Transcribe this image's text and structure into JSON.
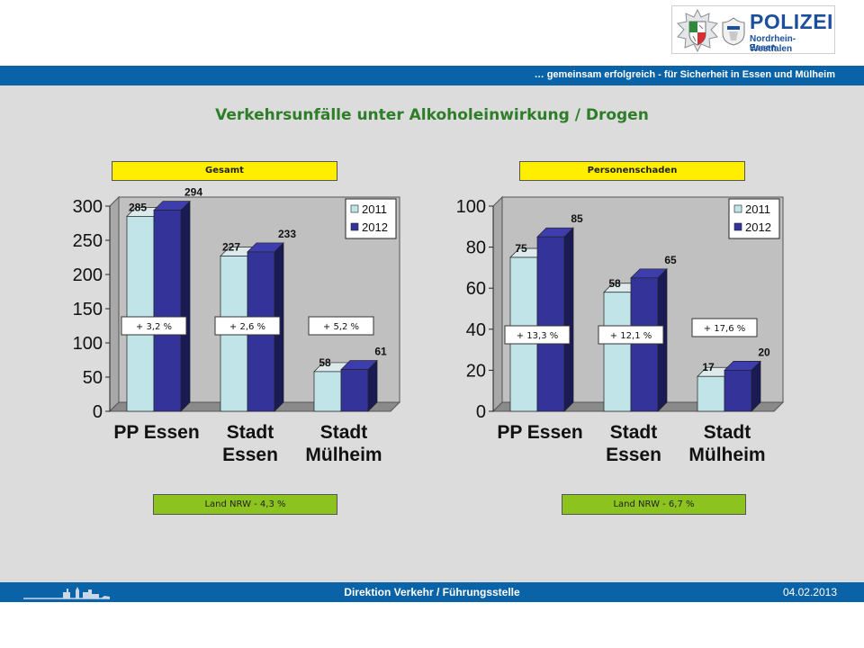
{
  "header": {
    "logo_title": "POLIZEI",
    "logo_sub1": "Nordrhein-Westfalen",
    "logo_sub2": "Essen",
    "tagline": "… gemeinsam erfolgreich - für Sicherheit in Essen und Mülheim"
  },
  "title": "Verkehrsunfälle unter Alkoholeinwirkung / Drogen",
  "colors": {
    "series_2011": "#c0e4e8",
    "series_2012": "#33339a",
    "header_bg": "#ffee00",
    "footer_bg": "#8dc31e",
    "brand_blue": "#0a63a6",
    "title_green": "#2e7d28"
  },
  "chart_data": [
    {
      "type": "bar",
      "title": "Gesamt",
      "categories": [
        [
          "PP Essen"
        ],
        [
          "Stadt",
          "Essen"
        ],
        [
          "Stadt",
          "Mülheim"
        ]
      ],
      "series": [
        {
          "name": "2011",
          "values": [
            285,
            227,
            58
          ]
        },
        {
          "name": "2012",
          "values": [
            294,
            233,
            61
          ]
        }
      ],
      "changes": [
        "+ 3,2 %",
        "+ 2,6 %",
        "+ 5,2 %"
      ],
      "footer": "Land NRW - 4,3 %",
      "ylim": [
        0,
        300
      ],
      "yticks": [
        0,
        50,
        100,
        150,
        200,
        250,
        300
      ],
      "legend": "top-right"
    },
    {
      "type": "bar",
      "title": "Personenschaden",
      "categories": [
        [
          "PP Essen"
        ],
        [
          "Stadt",
          "Essen"
        ],
        [
          "Stadt",
          "Mülheim"
        ]
      ],
      "series": [
        {
          "name": "2011",
          "values": [
            75,
            58,
            17
          ]
        },
        {
          "name": "2012",
          "values": [
            85,
            65,
            20
          ]
        }
      ],
      "changes": [
        "+ 13,3 %",
        "+ 12,1 %",
        "+ 17,6 %"
      ],
      "footer": "Land NRW - 6,7 %",
      "ylim": [
        0,
        100
      ],
      "yticks": [
        0,
        20,
        40,
        60,
        80,
        100
      ],
      "legend": "top-right"
    }
  ],
  "footer": {
    "text": "Direktion Verkehr / Führungsstelle",
    "date": "04.02.2013"
  }
}
